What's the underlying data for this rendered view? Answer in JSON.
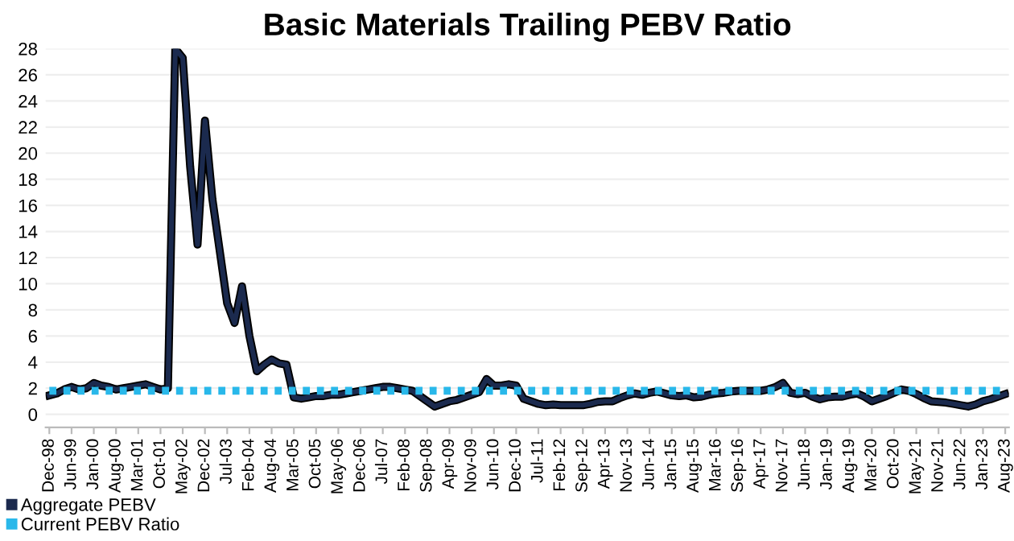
{
  "chart_data": {
    "type": "line",
    "title": "Basic Materials Trailing PEBV Ratio",
    "categories": [
      "Dec-98",
      null,
      null,
      "Jun-99",
      null,
      null,
      "Jan-00",
      null,
      null,
      "Aug-00",
      null,
      null,
      "Mar-01",
      null,
      null,
      "Oct-01",
      null,
      null,
      "May-02",
      null,
      null,
      "Dec-02",
      null,
      null,
      "Jul-03",
      null,
      null,
      "Feb-04",
      null,
      null,
      "Aug-04",
      null,
      null,
      "Mar-05",
      null,
      null,
      "Oct-05",
      null,
      null,
      "May-06",
      null,
      null,
      "Dec-06",
      null,
      null,
      "Jul-07",
      null,
      null,
      "Feb-08",
      null,
      null,
      "Sep-08",
      null,
      null,
      "Apr-09",
      null,
      null,
      "Nov-09",
      null,
      null,
      "Jun-10",
      null,
      null,
      "Dec-10",
      null,
      null,
      "Jul-11",
      null,
      null,
      "Feb-12",
      null,
      null,
      "Sep-12",
      null,
      null,
      "Apr-13",
      null,
      null,
      "Nov-13",
      null,
      null,
      "Jun-14",
      null,
      null,
      "Jan-15",
      null,
      null,
      "Aug-15",
      null,
      null,
      "Mar-16",
      null,
      null,
      "Sep-16",
      null,
      null,
      "Apr-17",
      null,
      null,
      "Nov-17",
      null,
      null,
      "Jun-18",
      null,
      null,
      "Jan-19",
      null,
      null,
      "Aug-19",
      null,
      null,
      "Mar-20",
      null,
      null,
      "Oct-20",
      null,
      null,
      "May-21",
      null,
      null,
      "Nov-21",
      null,
      null,
      "Jun-22",
      null,
      null,
      "Jan-23",
      null,
      null,
      "Aug-23"
    ],
    "series": [
      {
        "name": "Aggregate PEBV",
        "color": "#1b2a4e",
        "line_style": "solid",
        "values": [
          1.45,
          1.6,
          1.9,
          2.1,
          1.9,
          2.0,
          2.4,
          2.2,
          2.1,
          1.9,
          2.0,
          2.1,
          2.2,
          2.3,
          2.1,
          1.9,
          2.0,
          28,
          27.3,
          19,
          13,
          22.5,
          16.5,
          12.5,
          8.5,
          7,
          9.8,
          6,
          3.3,
          3.8,
          4.2,
          3.9,
          3.8,
          1.3,
          1.2,
          1.3,
          1.4,
          1.4,
          1.5,
          1.5,
          1.6,
          1.7,
          1.8,
          1.9,
          2.0,
          2.1,
          2.1,
          2.0,
          1.9,
          1.8,
          1.4,
          1.0,
          0.6,
          0.8,
          1.0,
          1.1,
          1.3,
          1.5,
          1.7,
          2.7,
          2.2,
          2.2,
          2.3,
          2.2,
          1.2,
          1.0,
          0.8,
          0.7,
          0.75,
          0.7,
          0.7,
          0.7,
          0.7,
          0.8,
          0.95,
          1.0,
          1.0,
          1.25,
          1.45,
          1.6,
          1.5,
          1.65,
          1.75,
          1.6,
          1.45,
          1.4,
          1.45,
          1.3,
          1.35,
          1.5,
          1.6,
          1.65,
          1.75,
          1.8,
          1.8,
          1.8,
          1.8,
          1.9,
          2.1,
          2.4,
          1.65,
          1.55,
          1.65,
          1.35,
          1.15,
          1.3,
          1.35,
          1.35,
          1.5,
          1.6,
          1.35,
          1.0,
          1.2,
          1.4,
          1.65,
          1.9,
          1.8,
          1.55,
          1.25,
          1.0,
          0.95,
          0.9,
          0.8,
          0.7,
          0.6,
          0.75,
          1.0,
          1.15,
          1.35,
          1.55
        ]
      },
      {
        "name": "Current PEBV Ratio",
        "color": "#29b8ea",
        "line_style": "dotted",
        "values": [
          1.8,
          1.8,
          1.8,
          1.8,
          1.8,
          1.8,
          1.8,
          1.8,
          1.8,
          1.8,
          1.8,
          1.8,
          1.8,
          1.8,
          1.8,
          1.8,
          1.8,
          1.8,
          1.8,
          1.8,
          1.8,
          1.8,
          1.8,
          1.8,
          1.8,
          1.8,
          1.8,
          1.8,
          1.8,
          1.8,
          1.8,
          1.8,
          1.8,
          1.8,
          1.8,
          1.8,
          1.8,
          1.8,
          1.8,
          1.8,
          1.8,
          1.8,
          1.8,
          1.8,
          1.8,
          1.8,
          1.8,
          1.8,
          1.8,
          1.8,
          1.8,
          1.8,
          1.8,
          1.8,
          1.8,
          1.8,
          1.8,
          1.8,
          1.8,
          1.8,
          1.8,
          1.8,
          1.8,
          1.8,
          1.8,
          1.8,
          1.8,
          1.8,
          1.8,
          1.8,
          1.8,
          1.8,
          1.8,
          1.8,
          1.8,
          1.8,
          1.8,
          1.8,
          1.8,
          1.8,
          1.8,
          1.8,
          1.8,
          1.8,
          1.8,
          1.8,
          1.8,
          1.8,
          1.8,
          1.8,
          1.8,
          1.8,
          1.8,
          1.8,
          1.8,
          1.8,
          1.8,
          1.8,
          1.8,
          1.8,
          1.8,
          1.8,
          1.8,
          1.8,
          1.8,
          1.8,
          1.8,
          1.8,
          1.8,
          1.8,
          1.8,
          1.8,
          1.8,
          1.8,
          1.8,
          1.8,
          1.8,
          1.8,
          1.8,
          1.8,
          1.8,
          1.8,
          1.8,
          1.8,
          1.8,
          1.8,
          1.8,
          1.8,
          1.8,
          1.8
        ]
      }
    ],
    "ylim": [
      -1,
      28
    ],
    "yticks": [
      0,
      2,
      4,
      6,
      8,
      10,
      12,
      14,
      16,
      18,
      20,
      22,
      24,
      26,
      28
    ],
    "grid": "y",
    "legend": "bottom left"
  }
}
